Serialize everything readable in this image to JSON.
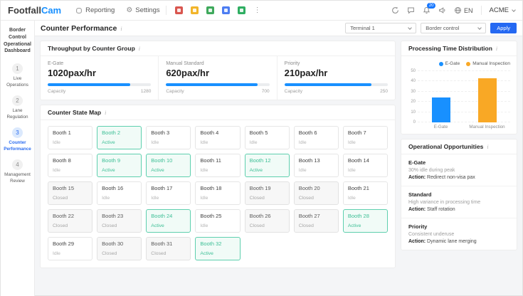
{
  "header": {
    "logo_part1": "Footfall",
    "logo_part2": "Cam",
    "nav": [
      {
        "label": "Reporting"
      },
      {
        "label": "Settings"
      }
    ],
    "app_icons": [
      {
        "name": "app-icon-red",
        "color": "#d9564f"
      },
      {
        "name": "app-icon-yellow",
        "color": "#f2b52a"
      },
      {
        "name": "app-icon-green",
        "color": "#3fa95c"
      },
      {
        "name": "app-icon-blue",
        "color": "#4d7df2"
      },
      {
        "name": "app-icon-teal",
        "color": "#2fae62"
      }
    ],
    "notifications_badge": "20",
    "language": "EN",
    "account_label": "ACME"
  },
  "sidebar": {
    "title": "Border Control Operational Dashboard",
    "steps": [
      {
        "num": "1",
        "label": "Live Operations",
        "active": false
      },
      {
        "num": "2",
        "label": "Lane Regulation",
        "active": false
      },
      {
        "num": "3",
        "label": "Counter Performance",
        "active": true
      },
      {
        "num": "4",
        "label": "Management Review",
        "active": false
      }
    ]
  },
  "page": {
    "title": "Counter Performance",
    "info_icon": "i",
    "terminal_select": "Terminal 1",
    "scope_select": "Border control",
    "apply_label": "Apply"
  },
  "throughput": {
    "title": "Throughput by Counter Group",
    "bar_color": "#1890ff",
    "groups": [
      {
        "label": "E-Gate",
        "value": "1020pax/hr",
        "capacity_label": "Capacity",
        "capacity": "1280",
        "percent": 79.7
      },
      {
        "label": "Manual Standard",
        "value": "620pax/hr",
        "capacity_label": "Capacity",
        "capacity": "700",
        "percent": 88.6
      },
      {
        "label": "Priority",
        "value": "210pax/hr",
        "capacity_label": "Capacity",
        "capacity": "250",
        "percent": 84
      }
    ]
  },
  "counter_state_map": {
    "title": "Counter State Map",
    "booths": [
      {
        "label": "Booth 1",
        "status": "Idle"
      },
      {
        "label": "Booth 2",
        "status": "Active"
      },
      {
        "label": "Booth 3",
        "status": "Idle"
      },
      {
        "label": "Booth 4",
        "status": "Idle"
      },
      {
        "label": "Booth 5",
        "status": "Idle"
      },
      {
        "label": "Booth 6",
        "status": "Idle"
      },
      {
        "label": "Booth 7",
        "status": "Idle"
      },
      {
        "label": "Booth 8",
        "status": "Idle"
      },
      {
        "label": "Booth 9",
        "status": "Active"
      },
      {
        "label": "Booth 10",
        "status": "Active"
      },
      {
        "label": "Booth 11",
        "status": "Idle"
      },
      {
        "label": "Booth 12",
        "status": "Active"
      },
      {
        "label": "Booth 13",
        "status": "Idle"
      },
      {
        "label": "Booth 14",
        "status": "Idle"
      },
      {
        "label": "Booth 15",
        "status": "Closed"
      },
      {
        "label": "Booth 16",
        "status": "Idle"
      },
      {
        "label": "Booth 17",
        "status": "Idle"
      },
      {
        "label": "Booth 18",
        "status": "Idle"
      },
      {
        "label": "Booth 19",
        "status": "Closed"
      },
      {
        "label": "Booth 20",
        "status": "Closed"
      },
      {
        "label": "Booth 21",
        "status": "Idle"
      },
      {
        "label": "Booth 22",
        "status": "Closed"
      },
      {
        "label": "Booth 23",
        "status": "Closed"
      },
      {
        "label": "Booth 24",
        "status": "Active"
      },
      {
        "label": "Booth 25",
        "status": "Idle"
      },
      {
        "label": "Booth 26",
        "status": "Closed"
      },
      {
        "label": "Booth 27",
        "status": "Closed"
      },
      {
        "label": "Booth 28",
        "status": "Active"
      },
      {
        "label": "Booth 29",
        "status": "Idle"
      },
      {
        "label": "Booth 30",
        "status": "Closed"
      },
      {
        "label": "Booth 31",
        "status": "Closed"
      },
      {
        "label": "Booth 32",
        "status": "Active"
      }
    ]
  },
  "chart_data": {
    "type": "bar",
    "title": "Processing Time Distribution",
    "categories": [
      "E-Gate",
      "Manual Inspection"
    ],
    "values": [
      24,
      43
    ],
    "colors": [
      "#1890ff",
      "#f9a825"
    ],
    "ylim": [
      0,
      50
    ],
    "yticks": [
      0,
      10,
      20,
      30,
      40,
      50
    ],
    "legend": [
      {
        "label": "E-Gate",
        "color": "#1890ff"
      },
      {
        "label": "Manual Inspection",
        "color": "#f9a825"
      }
    ],
    "legend_position": "top-right",
    "grid": true,
    "xlabel": "",
    "ylabel": ""
  },
  "opportunities": {
    "title": "Operational Opportunities",
    "items": [
      {
        "name": "E-Gate",
        "desc": "30% idle during peak",
        "action_label": "Action:",
        "action": "Redirect non-visa pax"
      },
      {
        "name": "Standard",
        "desc": "High variance in processing time",
        "action_label": "Action:",
        "action": "Staff rotation"
      },
      {
        "name": "Priority",
        "desc": "Consistent underuse",
        "action_label": "Action:",
        "action": "Dynamic lane merging"
      }
    ]
  }
}
